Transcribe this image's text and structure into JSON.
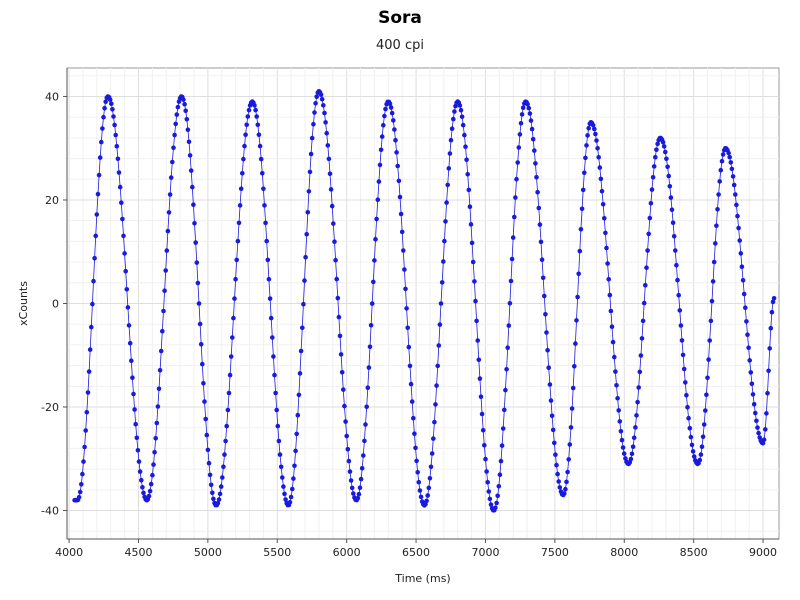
{
  "chart_data": {
    "type": "scatter",
    "title": "Sora",
    "subtitle": "400 cpi",
    "xlabel": "Time (ms)",
    "ylabel": "xCounts",
    "xlim": [
      3985,
      9115
    ],
    "ylim": [
      -45.5,
      45.5
    ],
    "x_ticks": [
      4000,
      4500,
      5000,
      5500,
      6000,
      6500,
      7000,
      7500,
      8000,
      8500,
      9000
    ],
    "y_ticks": [
      -40,
      -20,
      0,
      20,
      40
    ],
    "grid": true,
    "legend": "none",
    "series": [
      {
        "style": "points-with-line",
        "marker_color": "#1a1adc",
        "line_color": "#1a1adc",
        "x_start": 4040,
        "x_step": 8,
        "x_end": 9080,
        "extrema": [
          {
            "x": 4060,
            "y": -38
          },
          {
            "x": 4280,
            "y": 40
          },
          {
            "x": 4560,
            "y": -38
          },
          {
            "x": 4810,
            "y": 40
          },
          {
            "x": 5060,
            "y": -39
          },
          {
            "x": 5320,
            "y": 39
          },
          {
            "x": 5580,
            "y": -39
          },
          {
            "x": 5800,
            "y": 41
          },
          {
            "x": 6070,
            "y": -38
          },
          {
            "x": 6300,
            "y": 39
          },
          {
            "x": 6560,
            "y": -39
          },
          {
            "x": 6800,
            "y": 39
          },
          {
            "x": 7060,
            "y": -40
          },
          {
            "x": 7290,
            "y": 39
          },
          {
            "x": 7560,
            "y": -37
          },
          {
            "x": 7760,
            "y": 35
          },
          {
            "x": 8030,
            "y": -31
          },
          {
            "x": 8260,
            "y": 32
          },
          {
            "x": 8530,
            "y": -31
          },
          {
            "x": 8730,
            "y": 30
          },
          {
            "x": 9000,
            "y": -27
          },
          {
            "x": 9080,
            "y": 1
          }
        ]
      }
    ]
  }
}
